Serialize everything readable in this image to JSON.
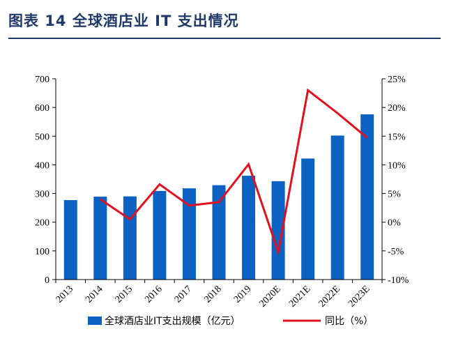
{
  "title": "图表 14  全球酒店业 IT 支出情况",
  "colors": {
    "bar": "#0b62c2",
    "line": "#e3101f",
    "title": "#1f3a68"
  },
  "chart_data": {
    "type": "bar",
    "categories": [
      "2013",
      "2014",
      "2015",
      "2016",
      "2017",
      "2018",
      "2019",
      "2020E",
      "2021E",
      "2022E",
      "2023E"
    ],
    "series": [
      {
        "name": "全球酒店业IT支出规模（亿元）",
        "type": "bar",
        "axis": "left",
        "values": [
          277,
          289,
          290,
          309,
          318,
          329,
          362,
          343,
          422,
          502,
          576
        ]
      },
      {
        "name": "同比（%）",
        "type": "line",
        "axis": "right",
        "values": [
          null,
          4.0,
          0.5,
          6.6,
          2.9,
          3.5,
          10.1,
          -5.2,
          23.0,
          19.0,
          14.7
        ]
      }
    ],
    "ylim_left": [
      0,
      700
    ],
    "yticks_left": [
      "0",
      "100",
      "200",
      "300",
      "400",
      "500",
      "600",
      "700"
    ],
    "ylim_right": [
      -10,
      25
    ],
    "yticks_right": [
      "-10%",
      "-5%",
      "0%",
      "5%",
      "10%",
      "15%",
      "20%",
      "25%"
    ],
    "grid": false,
    "legend_position": "bottom"
  }
}
